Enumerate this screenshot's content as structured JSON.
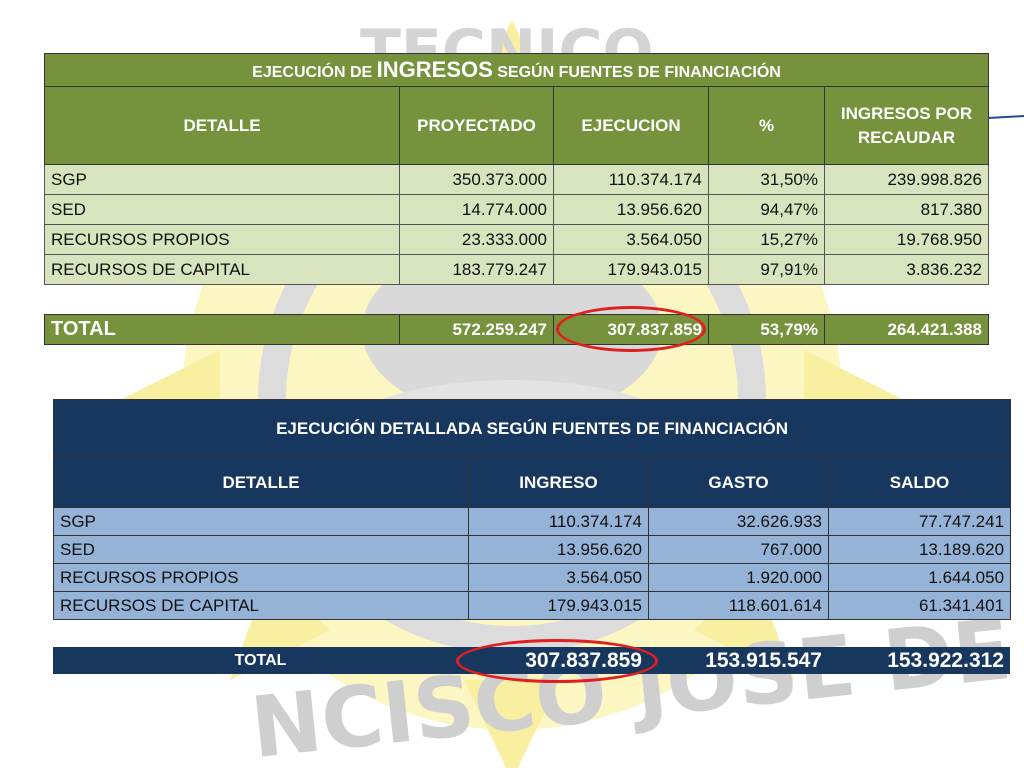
{
  "ingresos_table": {
    "title_prefix": "EJECUCIÓN DE",
    "title_highlight": "INGRESOS",
    "title_suffix": "SEGÚN FUENTES DE FINANCIACIÓN",
    "headers": [
      "DETALLE",
      "PROYECTADO",
      "EJECUCION",
      "%",
      "INGRESOS POR RECAUDAR"
    ],
    "rows": [
      [
        "SGP",
        "350.373.000",
        "110.374.174",
        "31,50%",
        "239.998.826"
      ],
      [
        "SED",
        "14.774.000",
        "13.956.620",
        "94,47%",
        "817.380"
      ],
      [
        "RECURSOS PROPIOS",
        "23.333.000",
        "3.564.050",
        "15,27%",
        "19.768.950"
      ],
      [
        "RECURSOS DE CAPITAL",
        "183.779.247",
        "179.943.015",
        "97,91%",
        "3.836.232"
      ]
    ],
    "total": [
      "TOTAL",
      "572.259.247",
      "307.837.859",
      "53,79%",
      "264.421.388"
    ]
  },
  "detallada_table": {
    "title": "EJECUCIÓN DETALLADA SEGÚN FUENTES DE FINANCIACIÓN",
    "headers": [
      "DETALLE",
      "INGRESO",
      "GASTO",
      "SALDO"
    ],
    "rows": [
      [
        "SGP",
        "110.374.174",
        "32.626.933",
        "77.747.241"
      ],
      [
        "SED",
        "13.956.620",
        "767.000",
        "13.189.620"
      ],
      [
        "RECURSOS PROPIOS",
        "3.564.050",
        "1.920.000",
        "1.644.050"
      ],
      [
        "RECURSOS DE CAPITAL",
        "179.943.015",
        "118.601.614",
        "61.341.401"
      ]
    ],
    "total": [
      "TOTAL",
      "307.837.859",
      "153.915.547",
      "153.922.312"
    ]
  },
  "watermark": {
    "top_text": "TECNICO",
    "bottom_text": "NCISCO JOSE DE CALDAS"
  },
  "colors": {
    "green_header": "#76923c",
    "green_row": "#d7e4bd",
    "navy_header": "#17375e",
    "blue_row": "#95b3d7",
    "highlight_ring": "#e02020"
  }
}
